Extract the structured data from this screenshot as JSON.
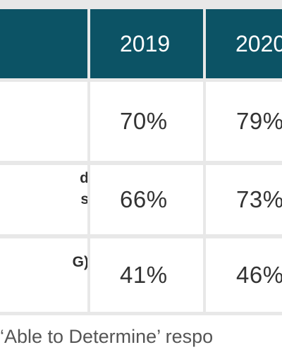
{
  "table": {
    "header": {
      "label_col": "",
      "years": [
        "2019",
        "2020"
      ]
    },
    "rows": [
      {
        "label": [
          "",
          ""
        ],
        "values": [
          "70%",
          "79%"
        ]
      },
      {
        "label": [
          "d",
          "s"
        ],
        "values": [
          "66%",
          "73%"
        ]
      },
      {
        "label": [
          "G)",
          ""
        ],
        "values": [
          "41%",
          "46%"
        ]
      }
    ]
  },
  "footnote": "‘Able to Determine’ respo",
  "colors": {
    "header_bg": "#0c5365",
    "grid": "#e8e8e8"
  }
}
